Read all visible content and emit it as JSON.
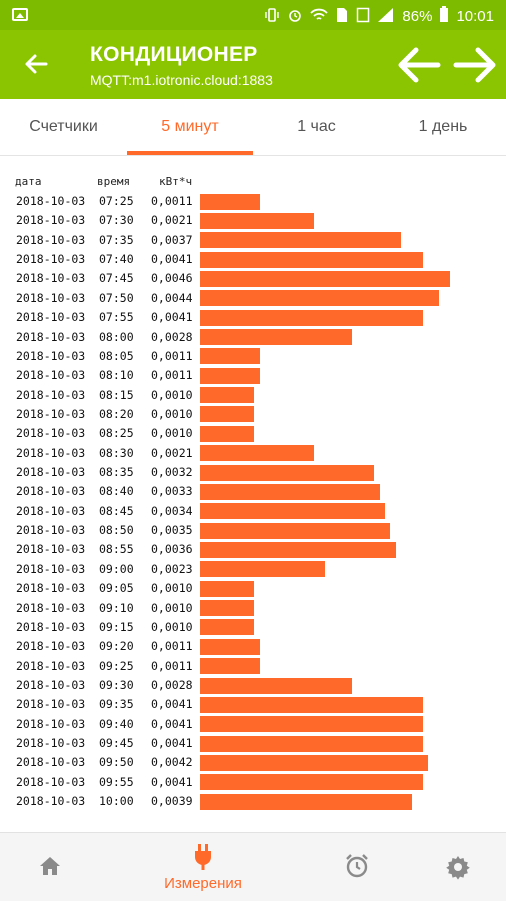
{
  "status_bar": {
    "battery": "86%",
    "time": "10:01"
  },
  "app_bar": {
    "title": "КОНДИЦИОНЕР",
    "subtitle": "MQTT:m1.iotronic.cloud:1883"
  },
  "tabs": [
    {
      "label": "Счетчики",
      "active": false
    },
    {
      "label": "5 минут",
      "active": true
    },
    {
      "label": "1 час",
      "active": false
    },
    {
      "label": "1 день",
      "active": false
    }
  ],
  "table": {
    "headers": {
      "date": "дата",
      "time": "время",
      "value": "кВт*ч"
    },
    "rows": [
      {
        "date": "2018-10-03",
        "time": "07:25",
        "value": "0,0011",
        "v": 0.0011
      },
      {
        "date": "2018-10-03",
        "time": "07:30",
        "value": "0,0021",
        "v": 0.0021
      },
      {
        "date": "2018-10-03",
        "time": "07:35",
        "value": "0,0037",
        "v": 0.0037
      },
      {
        "date": "2018-10-03",
        "time": "07:40",
        "value": "0,0041",
        "v": 0.0041
      },
      {
        "date": "2018-10-03",
        "time": "07:45",
        "value": "0,0046",
        "v": 0.0046
      },
      {
        "date": "2018-10-03",
        "time": "07:50",
        "value": "0,0044",
        "v": 0.0044
      },
      {
        "date": "2018-10-03",
        "time": "07:55",
        "value": "0,0041",
        "v": 0.0041
      },
      {
        "date": "2018-10-03",
        "time": "08:00",
        "value": "0,0028",
        "v": 0.0028
      },
      {
        "date": "2018-10-03",
        "time": "08:05",
        "value": "0,0011",
        "v": 0.0011
      },
      {
        "date": "2018-10-03",
        "time": "08:10",
        "value": "0,0011",
        "v": 0.0011
      },
      {
        "date": "2018-10-03",
        "time": "08:15",
        "value": "0,0010",
        "v": 0.001
      },
      {
        "date": "2018-10-03",
        "time": "08:20",
        "value": "0,0010",
        "v": 0.001
      },
      {
        "date": "2018-10-03",
        "time": "08:25",
        "value": "0,0010",
        "v": 0.001
      },
      {
        "date": "2018-10-03",
        "time": "08:30",
        "value": "0,0021",
        "v": 0.0021
      },
      {
        "date": "2018-10-03",
        "time": "08:35",
        "value": "0,0032",
        "v": 0.0032
      },
      {
        "date": "2018-10-03",
        "time": "08:40",
        "value": "0,0033",
        "v": 0.0033
      },
      {
        "date": "2018-10-03",
        "time": "08:45",
        "value": "0,0034",
        "v": 0.0034
      },
      {
        "date": "2018-10-03",
        "time": "08:50",
        "value": "0,0035",
        "v": 0.0035
      },
      {
        "date": "2018-10-03",
        "time": "08:55",
        "value": "0,0036",
        "v": 0.0036
      },
      {
        "date": "2018-10-03",
        "time": "09:00",
        "value": "0,0023",
        "v": 0.0023
      },
      {
        "date": "2018-10-03",
        "time": "09:05",
        "value": "0,0010",
        "v": 0.001
      },
      {
        "date": "2018-10-03",
        "time": "09:10",
        "value": "0,0010",
        "v": 0.001
      },
      {
        "date": "2018-10-03",
        "time": "09:15",
        "value": "0,0010",
        "v": 0.001
      },
      {
        "date": "2018-10-03",
        "time": "09:20",
        "value": "0,0011",
        "v": 0.0011
      },
      {
        "date": "2018-10-03",
        "time": "09:25",
        "value": "0,0011",
        "v": 0.0011
      },
      {
        "date": "2018-10-03",
        "time": "09:30",
        "value": "0,0028",
        "v": 0.0028
      },
      {
        "date": "2018-10-03",
        "time": "09:35",
        "value": "0,0041",
        "v": 0.0041
      },
      {
        "date": "2018-10-03",
        "time": "09:40",
        "value": "0,0041",
        "v": 0.0041
      },
      {
        "date": "2018-10-03",
        "time": "09:45",
        "value": "0,0041",
        "v": 0.0041
      },
      {
        "date": "2018-10-03",
        "time": "09:50",
        "value": "0,0042",
        "v": 0.0042
      },
      {
        "date": "2018-10-03",
        "time": "09:55",
        "value": "0,0041",
        "v": 0.0041
      },
      {
        "date": "2018-10-03",
        "time": "10:00",
        "value": "0,0039",
        "v": 0.0039
      }
    ]
  },
  "bottom_nav": [
    {
      "icon": "home-icon",
      "label": "",
      "active": false
    },
    {
      "icon": "plug-icon",
      "label": "Измерения",
      "active": true
    },
    {
      "icon": "alarm-clock-icon",
      "label": "",
      "active": false
    },
    {
      "icon": "gear-icon",
      "label": "",
      "active": false
    }
  ],
  "colors": {
    "status_bar": "#7dbb00",
    "app_bar": "#8bc400",
    "accent": "#ff6a2a",
    "bar": "#ff6a2a"
  }
}
